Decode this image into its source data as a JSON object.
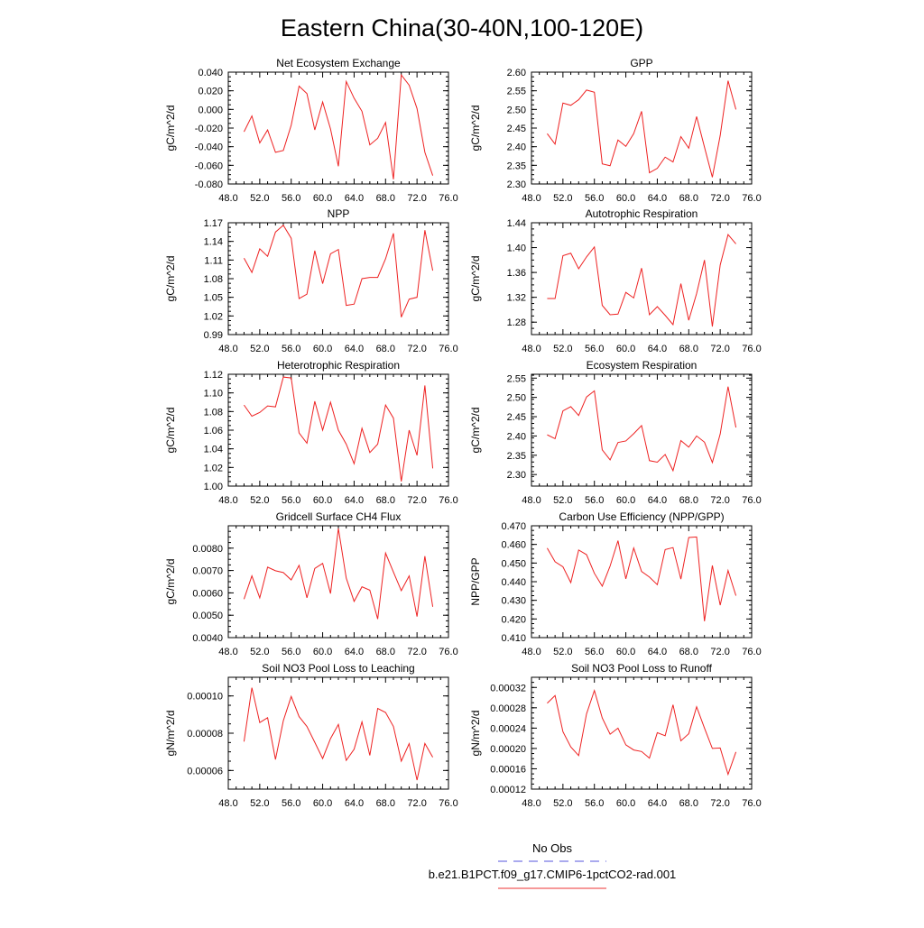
{
  "figure": {
    "title": "Eastern China(30-40N,100-120E)",
    "legend": [
      {
        "label": "No Obs",
        "color": "#5555dd",
        "dashed": true
      },
      {
        "label": "b.e21.B1PCT.f09_g17.CMIP6-1pctCO2-rad.001",
        "color": "#ee3333",
        "dashed": false
      }
    ]
  },
  "chart_data": [
    {
      "type": "line",
      "title": "Net Ecosystem Exchange",
      "ylabel": "gC/m^2/d",
      "xlim": [
        48,
        76
      ],
      "ylim": [
        -0.08,
        0.04
      ],
      "xticks": [
        "48.0",
        "52.0",
        "56.0",
        "60.0",
        "64.0",
        "68.0",
        "72.0",
        "76.0"
      ],
      "yticks": [
        "-0.080",
        "-0.060",
        "-0.040",
        "-0.020",
        "0.000",
        "0.020",
        "0.040"
      ],
      "color": "#ee2222",
      "x": [
        50,
        51,
        52,
        53,
        54,
        55,
        56,
        57,
        58,
        59,
        60,
        61,
        62,
        63,
        64,
        65,
        66,
        67,
        68,
        69,
        70,
        71,
        72,
        73,
        74
      ],
      "y": [
        -0.024,
        -0.007,
        -0.036,
        -0.022,
        -0.046,
        -0.044,
        -0.017,
        0.025,
        0.017,
        -0.022,
        0.008,
        -0.021,
        -0.061,
        0.03,
        0.012,
        -0.002,
        -0.038,
        -0.031,
        -0.014,
        -0.075,
        0.037,
        0.026,
        0.001,
        -0.046,
        -0.071
      ]
    },
    {
      "type": "line",
      "title": "GPP",
      "ylabel": "gC/m^2/d",
      "xlim": [
        48,
        76
      ],
      "ylim": [
        2.3,
        2.6
      ],
      "xticks": [
        "48.0",
        "52.0",
        "56.0",
        "60.0",
        "64.0",
        "68.0",
        "72.0",
        "76.0"
      ],
      "yticks": [
        "2.30",
        "2.35",
        "2.40",
        "2.45",
        "2.50",
        "2.55",
        "2.60"
      ],
      "color": "#ee2222",
      "x": [
        50,
        51,
        52,
        53,
        54,
        55,
        56,
        57,
        58,
        59,
        60,
        61,
        62,
        63,
        64,
        65,
        66,
        67,
        68,
        69,
        70,
        71,
        72,
        73,
        74
      ],
      "y": [
        2.435,
        2.407,
        2.517,
        2.511,
        2.526,
        2.552,
        2.546,
        2.354,
        2.349,
        2.418,
        2.401,
        2.435,
        2.495,
        2.33,
        2.342,
        2.372,
        2.359,
        2.427,
        2.396,
        2.481,
        2.399,
        2.318,
        2.43,
        2.577,
        2.5
      ]
    },
    {
      "type": "line",
      "title": "NPP",
      "ylabel": "gC/m^2/d",
      "xlim": [
        48,
        76
      ],
      "ylim": [
        0.99,
        1.17
      ],
      "xticks": [
        "48.0",
        "52.0",
        "56.0",
        "60.0",
        "64.0",
        "68.0",
        "72.0",
        "76.0"
      ],
      "yticks": [
        "0.99",
        "1.02",
        "1.05",
        "1.08",
        "1.11",
        "1.14",
        "1.17"
      ],
      "color": "#ee2222",
      "x": [
        50,
        51,
        52,
        53,
        54,
        55,
        56,
        57,
        58,
        59,
        60,
        61,
        62,
        63,
        64,
        65,
        66,
        67,
        68,
        69,
        70,
        71,
        72,
        73,
        74
      ],
      "y": [
        1.113,
        1.09,
        1.128,
        1.116,
        1.155,
        1.166,
        1.145,
        1.048,
        1.055,
        1.125,
        1.072,
        1.12,
        1.127,
        1.037,
        1.039,
        1.08,
        1.082,
        1.082,
        1.112,
        1.153,
        1.018,
        1.047,
        1.05,
        1.158,
        1.093
      ]
    },
    {
      "type": "line",
      "title": "Autotrophic Respiration",
      "ylabel": "gC/m^2/d",
      "xlim": [
        48,
        76
      ],
      "ylim": [
        1.26,
        1.44
      ],
      "xticks": [
        "48.0",
        "52.0",
        "56.0",
        "60.0",
        "64.0",
        "68.0",
        "72.0",
        "76.0"
      ],
      "yticks": [
        "1.28",
        "1.32",
        "1.36",
        "1.40",
        "1.44"
      ],
      "color": "#ee2222",
      "x": [
        50,
        51,
        52,
        53,
        54,
        55,
        56,
        57,
        58,
        59,
        60,
        61,
        62,
        63,
        64,
        65,
        66,
        67,
        68,
        69,
        70,
        71,
        72,
        73,
        74
      ],
      "y": [
        1.318,
        1.318,
        1.387,
        1.391,
        1.366,
        1.385,
        1.401,
        1.307,
        1.292,
        1.293,
        1.328,
        1.319,
        1.367,
        1.292,
        1.305,
        1.291,
        1.276,
        1.342,
        1.283,
        1.326,
        1.38,
        1.273,
        1.372,
        1.421,
        1.406
      ]
    },
    {
      "type": "line",
      "title": "Heterotrophic Respiration",
      "ylabel": "gC/m^2/d",
      "xlim": [
        48,
        76
      ],
      "ylim": [
        1.0,
        1.12
      ],
      "xticks": [
        "48.0",
        "52.0",
        "56.0",
        "60.0",
        "64.0",
        "68.0",
        "72.0",
        "76.0"
      ],
      "yticks": [
        "1.00",
        "1.02",
        "1.04",
        "1.06",
        "1.08",
        "1.10",
        "1.12"
      ],
      "color": "#ee2222",
      "x": [
        50,
        51,
        52,
        53,
        54,
        55,
        56,
        57,
        58,
        59,
        60,
        61,
        62,
        63,
        64,
        65,
        66,
        67,
        68,
        69,
        70,
        71,
        72,
        73,
        74
      ],
      "y": [
        1.087,
        1.075,
        1.079,
        1.086,
        1.085,
        1.117,
        1.116,
        1.057,
        1.046,
        1.091,
        1.06,
        1.09,
        1.06,
        1.045,
        1.024,
        1.062,
        1.036,
        1.045,
        1.087,
        1.073,
        1.005,
        1.06,
        1.033,
        1.108,
        1.019
      ]
    },
    {
      "type": "line",
      "title": "Ecosystem Respiration",
      "ylabel": "gC/m^2/d",
      "xlim": [
        48,
        76
      ],
      "ylim": [
        2.27,
        2.56
      ],
      "xticks": [
        "48.0",
        "52.0",
        "56.0",
        "60.0",
        "64.0",
        "68.0",
        "72.0",
        "76.0"
      ],
      "yticks": [
        "2.30",
        "2.35",
        "2.40",
        "2.45",
        "2.50",
        "2.55"
      ],
      "color": "#ee2222",
      "x": [
        50,
        51,
        52,
        53,
        54,
        55,
        56,
        57,
        58,
        59,
        60,
        61,
        62,
        63,
        64,
        65,
        66,
        67,
        68,
        69,
        70,
        71,
        72,
        73,
        74
      ],
      "y": [
        2.403,
        2.393,
        2.465,
        2.476,
        2.453,
        2.501,
        2.517,
        2.364,
        2.338,
        2.383,
        2.387,
        2.406,
        2.427,
        2.336,
        2.332,
        2.352,
        2.31,
        2.388,
        2.371,
        2.4,
        2.384,
        2.331,
        2.405,
        2.528,
        2.422
      ]
    },
    {
      "type": "line",
      "title": "Gridcell Surface CH4 Flux",
      "ylabel": "gC/m^2/d",
      "xlim": [
        48,
        76
      ],
      "ylim": [
        0.004,
        0.009
      ],
      "xticks": [
        "48.0",
        "52.0",
        "56.0",
        "60.0",
        "64.0",
        "68.0",
        "72.0",
        "76.0"
      ],
      "yticks": [
        "0.0040",
        "0.0050",
        "0.0060",
        "0.0070",
        "0.0080"
      ],
      "color": "#ee2222",
      "x": [
        50,
        51,
        52,
        53,
        54,
        55,
        56,
        57,
        58,
        59,
        60,
        61,
        62,
        63,
        64,
        65,
        66,
        67,
        68,
        69,
        70,
        71,
        72,
        73,
        74
      ],
      "y": [
        0.00572,
        0.00676,
        0.00578,
        0.00715,
        0.00699,
        0.00691,
        0.00658,
        0.00723,
        0.00578,
        0.00709,
        0.00732,
        0.00597,
        0.00888,
        0.00666,
        0.00562,
        0.00627,
        0.00612,
        0.00483,
        0.00778,
        0.00693,
        0.0061,
        0.00676,
        0.00494,
        0.00764,
        0.00538
      ]
    },
    {
      "type": "line",
      "title": "Carbon Use Efficiency (NPP/GPP)",
      "ylabel": "NPP/GPP",
      "xlim": [
        48,
        76
      ],
      "ylim": [
        0.41,
        0.47
      ],
      "xticks": [
        "48.0",
        "52.0",
        "56.0",
        "60.0",
        "64.0",
        "68.0",
        "72.0",
        "76.0"
      ],
      "yticks": [
        "0.410",
        "0.420",
        "0.430",
        "0.440",
        "0.450",
        "0.460",
        "0.470"
      ],
      "color": "#ee2222",
      "x": [
        50,
        51,
        52,
        53,
        54,
        55,
        56,
        57,
        58,
        59,
        60,
        61,
        62,
        63,
        64,
        65,
        66,
        67,
        68,
        69,
        70,
        71,
        72,
        73,
        74
      ],
      "y": [
        0.458,
        0.4507,
        0.448,
        0.4395,
        0.457,
        0.4545,
        0.4445,
        0.4376,
        0.4484,
        0.462,
        0.4415,
        0.4581,
        0.4455,
        0.4425,
        0.4384,
        0.4572,
        0.4583,
        0.4414,
        0.4637,
        0.464,
        0.4188,
        0.4487,
        0.4274,
        0.446,
        0.4325
      ]
    },
    {
      "type": "line",
      "title": "Soil NO3 Pool Loss to Leaching",
      "ylabel": "gN/m^2/d",
      "xlim": [
        48,
        76
      ],
      "ylim": [
        5e-05,
        0.00011
      ],
      "xticks": [
        "48.0",
        "52.0",
        "56.0",
        "60.0",
        "64.0",
        "68.0",
        "72.0",
        "76.0"
      ],
      "yticks": [
        "0.00006",
        "0.00008",
        "0.00010"
      ],
      "color": "#ee2222",
      "x": [
        50,
        51,
        52,
        53,
        54,
        55,
        56,
        57,
        58,
        59,
        60,
        61,
        62,
        63,
        64,
        65,
        66,
        67,
        68,
        69,
        70,
        71,
        72,
        73,
        74
      ],
      "y": [
        7.55e-05,
        0.0001044,
        8.57e-05,
        8.83e-05,
        6.59e-05,
        8.67e-05,
        9.97e-05,
        8.89e-05,
        8.36e-05,
        7.51e-05,
        6.64e-05,
        7.71e-05,
        8.47e-05,
        6.54e-05,
        7.14e-05,
        8.61e-05,
        6.81e-05,
        9.33e-05,
        9.11e-05,
        8.36e-05,
        6.5e-05,
        7.44e-05,
        5.48e-05,
        7.45e-05,
        6.71e-05
      ]
    },
    {
      "type": "line",
      "title": "Soil NO3 Pool Loss to Runoff",
      "ylabel": "gN/m^2/d",
      "xlim": [
        48,
        76
      ],
      "ylim": [
        0.00012,
        0.00034
      ],
      "xticks": [
        "48.0",
        "52.0",
        "56.0",
        "60.0",
        "64.0",
        "68.0",
        "72.0",
        "76.0"
      ],
      "yticks": [
        "0.00012",
        "0.00016",
        "0.00020",
        "0.00024",
        "0.00028",
        "0.00032"
      ],
      "color": "#ee2222",
      "x": [
        50,
        51,
        52,
        53,
        54,
        55,
        56,
        57,
        58,
        59,
        60,
        61,
        62,
        63,
        64,
        65,
        66,
        67,
        68,
        69,
        70,
        71,
        72,
        73,
        74
      ],
      "y": [
        0.000289,
        0.000304,
        0.000233,
        0.000203,
        0.000186,
        0.000268,
        0.000314,
        0.00026,
        0.000228,
        0.00024,
        0.000207,
        0.000197,
        0.000194,
        0.000181,
        0.000231,
        0.000225,
        0.000286,
        0.000215,
        0.000229,
        0.000282,
        0.00024,
        0.0002,
        0.000201,
        0.000149,
        0.000193
      ]
    }
  ]
}
